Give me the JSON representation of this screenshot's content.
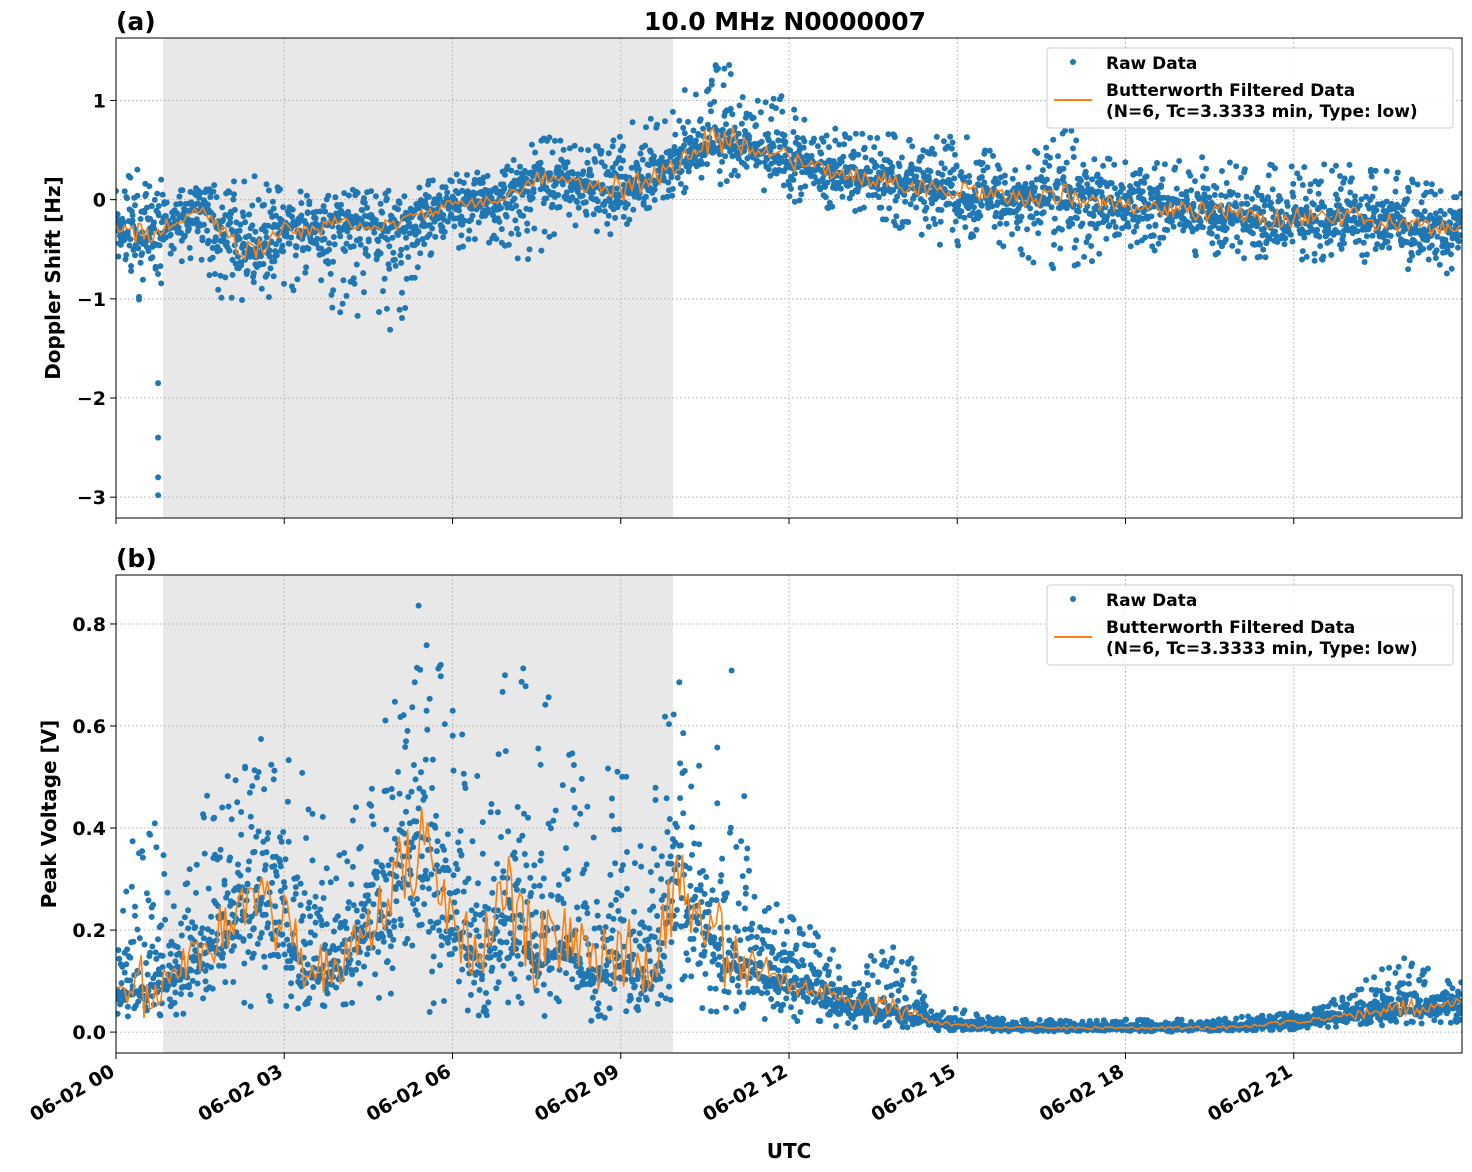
{
  "title": "10.0 MHz N0000007",
  "xlabel": "UTC",
  "x_ticks": [
    "06-02 00",
    "06-02 03",
    "06-02 06",
    "06-02 09",
    "06-02 12",
    "06-02 15",
    "06-02 18",
    "06-02 21"
  ],
  "colors": {
    "raw": "#1f77b4",
    "filtered": "#ff7f0e",
    "shade": "#e8e8e8"
  },
  "chart_data": [
    {
      "type": "scatter",
      "panel_label": "(a)",
      "ylabel": "Doppler Shift [Hz]",
      "xlim_hours": [
        0,
        24
      ],
      "ylim": [
        -3.21,
        1.63
      ],
      "y_ticks": [
        {
          "v": 1,
          "t": "1"
        },
        {
          "v": 0,
          "t": "0"
        },
        {
          "v": -1,
          "t": "−1"
        },
        {
          "v": -2,
          "t": "−2"
        },
        {
          "v": -3,
          "t": "−3"
        }
      ],
      "grid": true,
      "legend_position": "top-right",
      "legend": [
        "Raw Data",
        "Butterworth Filtered Data",
        "(N=6, Tc=3.3333 min, Type: low)"
      ],
      "shaded_span_hours": [
        0.84,
        9.93
      ],
      "sample_hours": [
        0,
        0.5,
        1,
        1.5,
        2,
        2.5,
        3,
        3.5,
        4,
        4.5,
        5,
        5.5,
        6,
        6.5,
        7,
        7.5,
        8,
        8.5,
        9,
        9.5,
        10,
        10.5,
        11,
        11.5,
        12,
        12.5,
        13,
        13.5,
        14,
        14.5,
        15,
        15.5,
        16,
        16.5,
        17,
        17.5,
        18,
        18.5,
        19,
        19.5,
        20,
        20.5,
        21,
        21.5,
        22,
        22.5,
        23,
        23.5,
        24
      ],
      "filtered": [
        -0.3,
        -0.35,
        -0.25,
        -0.1,
        -0.4,
        -0.55,
        -0.3,
        -0.35,
        -0.2,
        -0.3,
        -0.25,
        -0.15,
        -0.05,
        -0.05,
        0.05,
        0.2,
        0.2,
        0.1,
        0.1,
        0.2,
        0.35,
        0.55,
        0.6,
        0.5,
        0.4,
        0.3,
        0.25,
        0.2,
        0.15,
        0.1,
        0.05,
        0.05,
        0.0,
        0.0,
        0.05,
        -0.05,
        -0.05,
        -0.1,
        -0.1,
        -0.15,
        -0.15,
        -0.2,
        -0.2,
        -0.15,
        -0.2,
        -0.25,
        -0.25,
        -0.3,
        -0.25
      ],
      "raw_max": [
        0.1,
        0.45,
        0.1,
        0.15,
        0.2,
        0.25,
        0.15,
        0.1,
        0.1,
        0.1,
        0.1,
        0.2,
        0.25,
        0.3,
        0.35,
        0.65,
        0.6,
        0.5,
        0.95,
        0.9,
        1.0,
        1.4,
        1.4,
        1.05,
        1.05,
        0.75,
        0.7,
        0.7,
        0.65,
        0.6,
        0.75,
        0.5,
        0.5,
        0.5,
        0.75,
        0.45,
        0.45,
        0.4,
        0.4,
        0.5,
        0.4,
        0.45,
        0.35,
        0.35,
        0.55,
        0.3,
        0.3,
        0.15,
        0.1
      ],
      "raw_min": [
        -0.6,
        -1.1,
        -0.7,
        -0.6,
        -1.15,
        -1.1,
        -0.9,
        -1.0,
        -1.3,
        -1.35,
        -1.35,
        -0.6,
        -0.5,
        -0.5,
        -0.7,
        -0.6,
        -0.3,
        -0.5,
        -0.3,
        -0.1,
        0.0,
        0.2,
        0.1,
        0.05,
        0.0,
        -0.1,
        -0.1,
        -0.15,
        -0.3,
        -0.4,
        -0.55,
        -0.4,
        -0.55,
        -0.7,
        -0.75,
        -0.6,
        -0.5,
        -0.55,
        -0.55,
        -0.6,
        -0.6,
        -0.6,
        -0.6,
        -0.65,
        -0.7,
        -0.75,
        -0.75,
        -0.8,
        -0.75
      ],
      "outliers": [
        {
          "h": 0.75,
          "v": -1.85
        },
        {
          "h": 0.75,
          "v": -2.4
        },
        {
          "h": 0.75,
          "v": -2.8
        },
        {
          "h": 0.75,
          "v": -2.98
        }
      ]
    },
    {
      "type": "scatter",
      "panel_label": "(b)",
      "ylabel": "Peak Voltage [V]",
      "xlim_hours": [
        0,
        24
      ],
      "ylim": [
        -0.041,
        0.896
      ],
      "y_ticks": [
        {
          "v": 0,
          "t": "0.0"
        },
        {
          "v": 0.2,
          "t": "0.2"
        },
        {
          "v": 0.4,
          "t": "0.4"
        },
        {
          "v": 0.6,
          "t": "0.6"
        },
        {
          "v": 0.8,
          "t": "0.8"
        }
      ],
      "grid": true,
      "legend_position": "top-right",
      "legend": [
        "Raw Data",
        "Butterworth Filtered Data",
        "(N=6, Tc=3.3333 min, Type: low)"
      ],
      "shaded_span_hours": [
        0.84,
        9.93
      ],
      "sample_hours": [
        0,
        0.5,
        1,
        1.5,
        2,
        2.5,
        3,
        3.5,
        4,
        4.5,
        5,
        5.5,
        6,
        6.5,
        7,
        7.5,
        8,
        8.5,
        9,
        9.5,
        10,
        10.5,
        11,
        11.5,
        12,
        12.5,
        13,
        13.5,
        14,
        14.5,
        15,
        15.5,
        16,
        16.5,
        17,
        17.5,
        18,
        18.5,
        19,
        19.5,
        20,
        20.5,
        21,
        21.5,
        22,
        22.5,
        23,
        23.5,
        24
      ],
      "filtered": [
        0.08,
        0.09,
        0.11,
        0.15,
        0.2,
        0.25,
        0.2,
        0.12,
        0.13,
        0.2,
        0.3,
        0.35,
        0.2,
        0.15,
        0.25,
        0.15,
        0.18,
        0.12,
        0.15,
        0.1,
        0.3,
        0.2,
        0.15,
        0.13,
        0.1,
        0.08,
        0.06,
        0.05,
        0.04,
        0.02,
        0.015,
        0.01,
        0.008,
        0.008,
        0.008,
        0.008,
        0.008,
        0.008,
        0.008,
        0.008,
        0.01,
        0.015,
        0.02,
        0.025,
        0.03,
        0.04,
        0.045,
        0.05,
        0.06
      ],
      "raw_max": [
        0.2,
        0.5,
        0.3,
        0.45,
        0.55,
        0.57,
        0.65,
        0.45,
        0.4,
        0.5,
        0.8,
        0.85,
        0.65,
        0.5,
        0.75,
        0.7,
        0.62,
        0.45,
        0.68,
        0.4,
        0.82,
        0.45,
        0.77,
        0.3,
        0.25,
        0.2,
        0.15,
        0.15,
        0.2,
        0.05,
        0.05,
        0.03,
        0.025,
        0.025,
        0.025,
        0.025,
        0.025,
        0.025,
        0.025,
        0.025,
        0.03,
        0.035,
        0.04,
        0.06,
        0.08,
        0.12,
        0.15,
        0.12,
        0.1
      ],
      "raw_min": [
        0.03,
        0.03,
        0.03,
        0.04,
        0.04,
        0.05,
        0.05,
        0.04,
        0.04,
        0.04,
        0.04,
        0.04,
        0.03,
        0.03,
        0.03,
        0.03,
        0.03,
        0.02,
        0.02,
        0.02,
        0.03,
        0.03,
        0.03,
        0.02,
        0.02,
        0.015,
        0.01,
        0.008,
        0.005,
        0.003,
        0.002,
        0.002,
        0.001,
        0.001,
        0.001,
        0.001,
        0.001,
        0.001,
        0.001,
        0.002,
        0.003,
        0.004,
        0.005,
        0.008,
        0.01,
        0.012,
        0.015,
        0.015,
        0.02
      ],
      "outliers": []
    }
  ]
}
